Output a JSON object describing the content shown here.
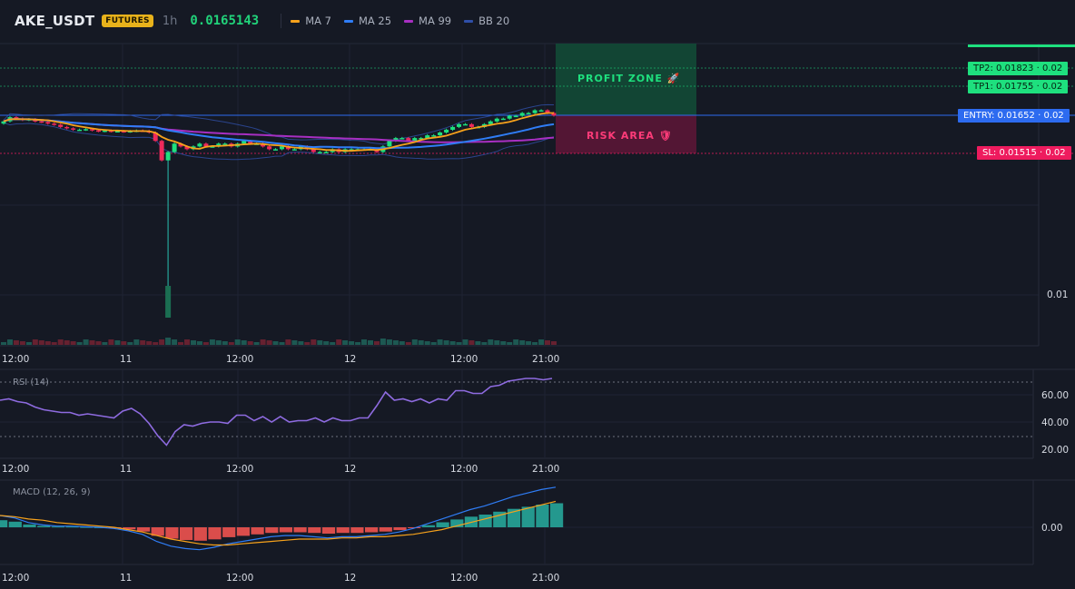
{
  "header": {
    "symbol": "AKE_USDT",
    "market_badge": "FUTURES",
    "interval": "1h",
    "last_price": "0.0165143",
    "indicators": [
      {
        "label": "MA 7",
        "color": "#f7a21b"
      },
      {
        "label": "MA 25",
        "color": "#2f7df6"
      },
      {
        "label": "MA 99",
        "color": "#a82fc2"
      },
      {
        "label": "BB 20",
        "color": "#2f4fa8"
      }
    ]
  },
  "trade_levels": {
    "tp2": "TP2: 0.01823",
    "tp1": "TP1: 0.01755",
    "entry": "ENTRY: 0.01652",
    "sl": "SL: 0.01515",
    "tp2_suffix": "· 0.02",
    "tp1_suffix": "· 0.02",
    "entry_suffix": "· 0.02",
    "sl_suffix": "· 0.02"
  },
  "zones": {
    "profit_label": "PROFIT ZONE 🚀",
    "risk_label": "RISK AREA 🛡"
  },
  "price_axis": {
    "label_001": "0.01"
  },
  "time_axis": [
    "12:00",
    "11",
    "12:00",
    "12",
    "12:00",
    "21:00"
  ],
  "rsi": {
    "title": "RSI (14)",
    "ticks": [
      "60.00",
      "40.00",
      "20.00"
    ]
  },
  "macd": {
    "title": "MACD (12, 26, 9)",
    "ticks": [
      "0.00"
    ]
  },
  "colors": {
    "up": "#26a69a",
    "up_bright": "#1ee07e",
    "down": "#ef2a5b",
    "rsi_line": "#8e6be0",
    "macd_line": "#2f7df6",
    "signal_line": "#f7a21b",
    "hist_pos": "#26a69a",
    "hist_neg": "#ef5350"
  },
  "chart_data": {
    "type": "candlestick",
    "close": [
      0.0163,
      0.01645,
      0.0164,
      0.01635,
      0.01638,
      0.0163,
      0.01628,
      0.01622,
      0.01618,
      0.0161,
      0.01605,
      0.016,
      0.016,
      0.01602,
      0.01598,
      0.01595,
      0.01597,
      0.01594,
      0.01595,
      0.01593,
      0.01595,
      0.01597,
      0.01596,
      0.0159,
      0.0156,
      0.0149,
      0.0152,
      0.0155,
      0.0154,
      0.0153,
      0.0154,
      0.0155,
      0.0154,
      0.0154,
      0.0155,
      0.0155,
      0.0154,
      0.0155,
      0.0156,
      0.0155,
      0.0155,
      0.0154,
      0.0153,
      0.0153,
      0.0154,
      0.0153,
      0.0153,
      0.0154,
      0.0153,
      0.0152,
      0.0152,
      0.0152,
      0.0153,
      0.0152,
      0.0153,
      0.0153,
      0.0153,
      0.0153,
      0.0153,
      0.0152,
      0.0154,
      0.0156,
      0.0157,
      0.0157,
      0.0156,
      0.0157,
      0.0157,
      0.0158,
      0.0158,
      0.0159,
      0.016,
      0.0161,
      0.0162,
      0.0162,
      0.0161,
      0.0161,
      0.0162,
      0.0163,
      0.0164,
      0.0164,
      0.0165,
      0.0165,
      0.0166,
      0.0166,
      0.0167,
      0.0167,
      0.0166,
      0.01651
    ],
    "rsi": [
      56,
      57,
      55,
      54,
      51,
      49,
      48,
      47,
      47,
      45,
      46,
      45,
      44,
      43,
      48,
      50,
      46,
      39,
      30,
      23,
      33,
      38,
      37,
      39,
      40,
      40,
      39,
      45,
      45,
      41,
      44,
      40,
      44,
      40,
      41,
      41,
      43,
      40,
      43,
      41,
      41,
      43,
      43,
      52,
      62,
      56,
      57,
      55,
      57,
      54,
      57,
      56,
      63,
      63,
      61,
      61,
      66,
      67,
      70,
      71,
      72,
      72,
      71,
      72
    ],
    "macd": [
      1e-05,
      8e-06,
      4e-06,
      2e-06,
      1e-06,
      1e-06,
      5e-07,
      0,
      -1e-06,
      -3e-06,
      -6e-06,
      -1.2e-05,
      -1.6e-05,
      -1.8e-05,
      -1.9e-05,
      -1.7e-05,
      -1.4e-05,
      -1.2e-05,
      -1e-05,
      -8e-06,
      -7e-06,
      -7e-06,
      -8e-06,
      -9e-06,
      -8e-06,
      -8e-06,
      -7e-06,
      -6e-06,
      -4e-06,
      -1e-06,
      3e-06,
      7e-06,
      1.1e-05,
      1.5e-05,
      1.8e-05,
      2.2e-05,
      2.6e-05,
      2.9e-05,
      3.2e-05,
      3.4e-05
    ],
    "signal": [
      1e-05,
      9e-06,
      7e-06,
      6e-06,
      4e-06,
      3e-06,
      2e-06,
      1e-06,
      0,
      -2e-06,
      -4e-06,
      -7e-06,
      -1e-05,
      -1.2e-05,
      -1.4e-05,
      -1.5e-05,
      -1.5e-05,
      -1.4e-05,
      -1.3e-05,
      -1.2e-05,
      -1.1e-05,
      -1e-05,
      -1e-05,
      -1e-05,
      -9e-06,
      -9e-06,
      -8e-06,
      -8e-06,
      -7e-06,
      -6e-06,
      -4e-06,
      -2e-06,
      1e-06,
      4e-06,
      7e-06,
      1e-05,
      1.3e-05,
      1.6e-05,
      1.9e-05,
      2.2e-05
    ]
  }
}
